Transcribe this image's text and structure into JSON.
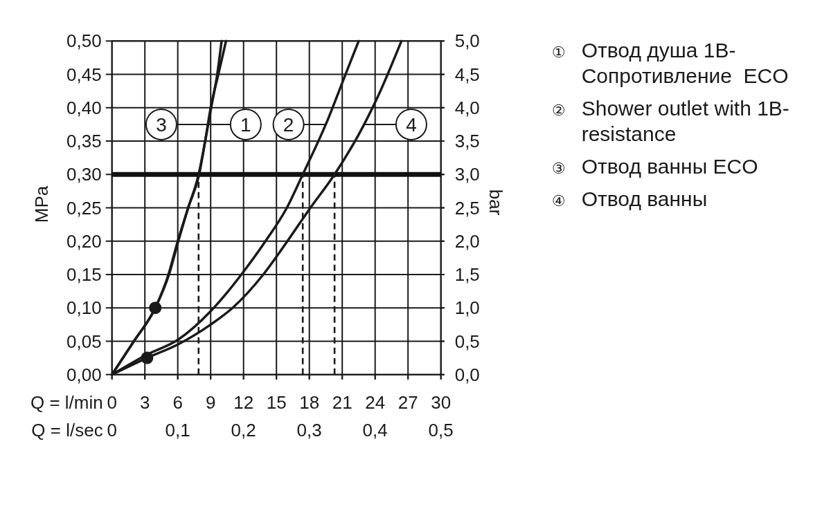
{
  "chart_data": {
    "type": "line",
    "xlabel": "Q = l/min",
    "x2label": "Q = l/sec",
    "ylabel": "MPa",
    "y2label": "bar",
    "xlim": [
      0,
      30
    ],
    "xticks": [
      0,
      3,
      6,
      9,
      12,
      15,
      18,
      21,
      24,
      27,
      30
    ],
    "x2lim": [
      0,
      0.5
    ],
    "x2ticks": [
      0,
      {
        "value": 0.1,
        "label": "0,1"
      },
      {
        "value": 0.2,
        "label": "0,2"
      },
      {
        "value": 0.3,
        "label": "0,3"
      },
      {
        "value": 0.4,
        "label": "0,4"
      },
      {
        "value": 0.5,
        "label": "0,5"
      }
    ],
    "ylim": [
      0,
      0.5
    ],
    "yticks": [
      {
        "value": 0,
        "label": "0,00"
      },
      {
        "value": 0.05,
        "label": "0,05"
      },
      {
        "value": 0.1,
        "label": "0,10"
      },
      {
        "value": 0.15,
        "label": "0,15"
      },
      {
        "value": 0.2,
        "label": "0,20"
      },
      {
        "value": 0.25,
        "label": "0,25"
      },
      {
        "value": 0.3,
        "label": "0,30"
      },
      {
        "value": 0.35,
        "label": "0,35"
      },
      {
        "value": 0.4,
        "label": "0,40"
      },
      {
        "value": 0.45,
        "label": "0,45"
      },
      {
        "value": 0.5,
        "label": "0,50"
      }
    ],
    "y2lim": [
      0,
      5
    ],
    "y2ticks": [
      {
        "value": 0,
        "label": "0,0"
      },
      {
        "value": 0.5,
        "label": "0,5"
      },
      {
        "value": 1,
        "label": "1,0"
      },
      {
        "value": 1.5,
        "label": "1,5"
      },
      {
        "value": 2,
        "label": "2,0"
      },
      {
        "value": 2.5,
        "label": "2,5"
      },
      {
        "value": 3,
        "label": "3,0"
      },
      {
        "value": 3.5,
        "label": "3,5"
      },
      {
        "value": 4,
        "label": "4,0"
      },
      {
        "value": 4.5,
        "label": "4,5"
      },
      {
        "value": 5,
        "label": "5,0"
      }
    ],
    "grid": true,
    "legend": "right",
    "series": [
      {
        "name": "① Отвод душа 1B-Сопротивление  ECO",
        "color": "#1a1a1a",
        "x": [
          0,
          2,
          3.95,
          5.2,
          6.05,
          6.95,
          7.95,
          8.5,
          9.0,
          9.7,
          10.4
        ],
        "values": [
          0,
          0.05,
          0.1,
          0.15,
          0.2,
          0.25,
          0.3,
          0.35,
          0.4,
          0.45,
          0.5
        ]
      },
      {
        "name": "② Shower outlet with 1B-resistance",
        "color": "#1a1a1a",
        "x": [
          0,
          3.2,
          6,
          9,
          10.6,
          11.8,
          14,
          15.95,
          17.4,
          19.5,
          21.3,
          22.5
        ],
        "values": [
          0,
          0.03,
          0.052,
          0.095,
          0.125,
          0.15,
          0.2,
          0.25,
          0.3,
          0.375,
          0.45,
          0.5
        ]
      },
      {
        "name": "③ Отвод ванны ECO",
        "color": "#1a1a1a",
        "x": [
          0,
          2,
          3.95,
          5.15,
          6.0,
          6.95,
          7.9,
          8.5,
          9.05,
          9.6,
          10.0
        ],
        "values": [
          0,
          0.05,
          0.1,
          0.15,
          0.2,
          0.25,
          0.3,
          0.35,
          0.4,
          0.45,
          0.5
        ]
      },
      {
        "name": "④ Отвод ванны",
        "color": "#1a1a1a",
        "x": [
          0,
          3.2,
          6,
          9,
          11,
          13.8,
          16,
          18.1,
          20.3,
          23,
          24.2,
          26.4
        ],
        "values": [
          0,
          0.025,
          0.045,
          0.075,
          0.1,
          0.15,
          0.2,
          0.25,
          0.3,
          0.375,
          0.415,
          0.5
        ]
      },
      {
        "line_style": "dashed",
        "color": "#1a1a1a",
        "x": [
          7.9,
          7.9
        ],
        "values": [
          0,
          0.3
        ]
      },
      {
        "line_style": "dashed",
        "color": "#1a1a1a",
        "x": [
          17.4,
          17.4
        ],
        "values": [
          0,
          0.3
        ]
      },
      {
        "line_style": "dashed",
        "color": "#1a1a1a",
        "x": [
          20.3,
          20.3
        ],
        "values": [
          0,
          0.3
        ]
      },
      {
        "type": "scatter",
        "marker": "circle",
        "color": "#1a1a1a",
        "x": [
          3.95,
          3.2
        ],
        "values": [
          0.1,
          0.025
        ]
      }
    ],
    "ref_lines": [
      {
        "axis": "y",
        "value": 0.3,
        "color": "#111111"
      }
    ],
    "annotations": [
      {
        "text": "3",
        "x": 4.5,
        "y": 0.375
      },
      {
        "text": "1",
        "x": 12.2,
        "y": 0.375
      },
      {
        "text": "2",
        "x": 16.1,
        "y": 0.375
      },
      {
        "text": "4",
        "x": 27.3,
        "y": 0.375
      }
    ]
  }
}
